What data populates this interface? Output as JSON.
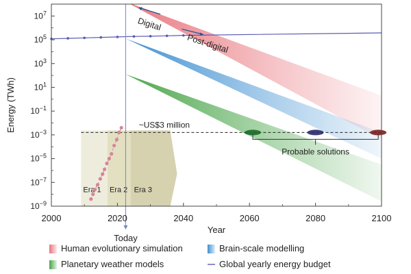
{
  "chart_data": {
    "type": "area",
    "xlabel": "Year",
    "ylabel": "Energy (TWh)",
    "xlim": [
      2000,
      2100
    ],
    "ylim_log10": [
      -9,
      8
    ],
    "x_ticks": [
      2000,
      2020,
      2040,
      2060,
      2080,
      2100
    ],
    "y_ticks_exp": [
      -9,
      -7,
      -5,
      -3,
      -1,
      1,
      3,
      5,
      7
    ],
    "y_tick_base": "10",
    "today_year": 2022.5,
    "today_label": "Today",
    "budget_series": {
      "name": "Global yearly energy budget",
      "color": "#5a5ab4",
      "x": [
        2000,
        2005,
        2010,
        2015,
        2020,
        2025,
        2030,
        2035,
        2040,
        2100
      ],
      "log10_y": [
        5.08,
        5.12,
        5.16,
        5.2,
        5.24,
        5.28,
        5.3,
        5.33,
        5.37,
        5.58
      ]
    },
    "bands": [
      {
        "name": "Human evolutionary simulation",
        "color": "#e8747c",
        "start_year": 2022.5,
        "start_top_log10": 8.2,
        "start_bottom_log10": 8.2,
        "end_top_log10": 0.3,
        "end_bottom_log10": -3.4
      },
      {
        "name": "Brain-scale modelling",
        "color": "#3d8fd1",
        "start_year": 2022.5,
        "start_top_log10": 5.1,
        "start_bottom_log10": 5.1,
        "end_top_log10": -2.8,
        "end_bottom_log10": -5.0
      },
      {
        "name": "Planetary weather models",
        "color": "#47a447",
        "start_year": 2022.5,
        "start_top_log10": 2.1,
        "start_bottom_log10": 2.1,
        "end_top_log10": -5.5,
        "end_bottom_log10": -8.6
      }
    ],
    "cost_line": {
      "label": "~US$3 million",
      "log10_y": -2.8,
      "x_start": 2009,
      "x_end": 2100
    },
    "solution_points": [
      2061,
      2080,
      2099
    ],
    "solution_label": "Probable solutions",
    "era_points": {
      "x": [
        2012,
        2012.6,
        2013.2,
        2014,
        2014.8,
        2015.5,
        2016.1,
        2016.8,
        2017.5,
        2018.2,
        2019,
        2019.8,
        2020.5,
        2021.2
      ],
      "log10_y": [
        -8.4,
        -8.0,
        -7.6,
        -7.2,
        -6.7,
        -6.3,
        -5.9,
        -5.4,
        -5.0,
        -4.6,
        -3.9,
        -3.4,
        -2.8,
        -2.4
      ]
    },
    "eras": [
      {
        "label": "Era 1",
        "x_start": 2009,
        "x_end": 2017,
        "color": "#ebe9d6"
      },
      {
        "label": "Era 2",
        "x_start": 2017,
        "x_end": 2024,
        "color": "#dedbb6"
      },
      {
        "label": "Era 3",
        "x_start": 2024,
        "x_end": 2036,
        "color": "#cfc9a1"
      }
    ],
    "annotations": [
      {
        "text": "Digital",
        "x": 2026,
        "log10_y": 6.4,
        "rotate": 18
      },
      {
        "text": "Post-digital",
        "x": 2041,
        "log10_y": 5.0,
        "rotate": 18
      }
    ],
    "legend": [
      {
        "label": "Human evolutionary simulation",
        "kind": "swatch",
        "color": "#e8747c"
      },
      {
        "label": "Brain-scale modelling",
        "kind": "swatch",
        "color": "#3d8fd1"
      },
      {
        "label": "Planetary weather models",
        "kind": "swatch",
        "color": "#47a447"
      },
      {
        "label": "Global yearly energy budget",
        "kind": "line",
        "color": "#5a5ab4"
      }
    ],
    "legend_placement": "bottom"
  }
}
